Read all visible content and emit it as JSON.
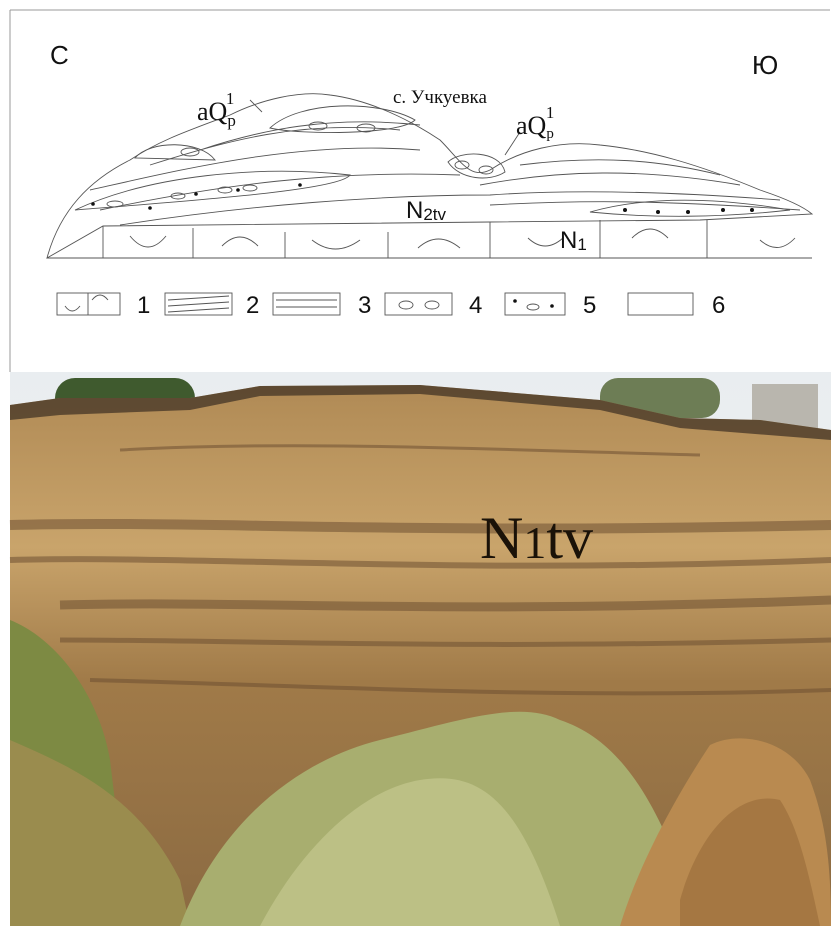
{
  "diagram": {
    "directions": {
      "north": "С",
      "south": "Ю"
    },
    "village": "с. Учкуевка",
    "labels": [
      {
        "base": "aQ",
        "sub": "p",
        "sup": "1"
      },
      {
        "base": "aQ",
        "sub": "p",
        "sup": "1"
      },
      {
        "base": "N",
        "sub": "2tv"
      },
      {
        "base": "N",
        "sub": "1"
      }
    ],
    "legend": [
      "1",
      "2",
      "3",
      "4",
      "5",
      "6"
    ]
  },
  "photo": {
    "label": {
      "base": "N",
      "sub": "1",
      "rest": "tv"
    }
  }
}
